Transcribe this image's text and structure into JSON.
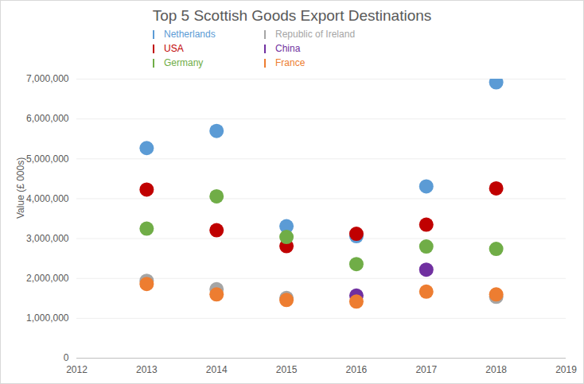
{
  "chart_data": {
    "type": "scatter",
    "title": "Top 5 Scottish Goods Export Destinations",
    "y_label": "Value (£ 000s)",
    "x": [
      2013,
      2014,
      2015,
      2016,
      2017,
      2018
    ],
    "series": [
      {
        "name": "Netherlands",
        "color": "#5b9bd5",
        "values": [
          5270000,
          5700000,
          3310000,
          3060000,
          4310000,
          6920000
        ]
      },
      {
        "name": "USA",
        "color": "#c00000",
        "values": [
          4230000,
          3210000,
          2810000,
          3120000,
          3350000,
          4260000
        ]
      },
      {
        "name": "Germany",
        "color": "#70ad47",
        "values": [
          3250000,
          4060000,
          3040000,
          2360000,
          2800000,
          2740000
        ]
      },
      {
        "name": "Republic of Ireland",
        "color": "#a5a5a5",
        "values": [
          1940000,
          1730000,
          1510000,
          null,
          null,
          1540000
        ]
      },
      {
        "name": "China",
        "color": "#7030a0",
        "values": [
          null,
          null,
          null,
          1570000,
          2220000,
          null
        ]
      },
      {
        "name": "France",
        "color": "#ed7d31",
        "values": [
          1860000,
          1600000,
          1460000,
          1420000,
          1670000,
          1600000
        ]
      }
    ],
    "xlim": [
      2012,
      2019
    ],
    "xticks": [
      2012,
      2013,
      2014,
      2015,
      2016,
      2017,
      2018,
      2019
    ],
    "ylim": [
      0,
      7000000
    ],
    "yticks": [
      0,
      {
        "value": 1000000,
        "label": "1,000,000"
      },
      {
        "value": 2000000,
        "label": "2,000,000"
      },
      {
        "value": 3000000,
        "label": "3,000,000"
      },
      {
        "value": 4000000,
        "label": "4,000,000"
      },
      {
        "value": 5000000,
        "label": "5,000,000"
      },
      {
        "value": 6000000,
        "label": "6,000,000"
      },
      {
        "value": 7000000,
        "label": "7,000,000"
      }
    ],
    "grid": true,
    "legend": "top",
    "marker": "circle"
  }
}
